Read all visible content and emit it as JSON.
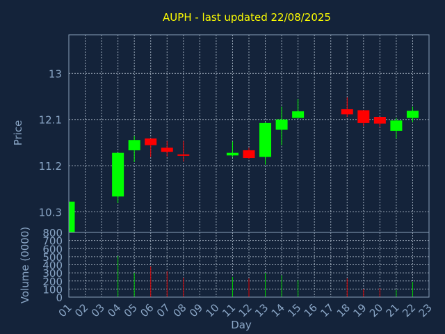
{
  "chart_data": {
    "type": "candlestick",
    "title": "AUPH - last updated 22/08/2025",
    "ylabel": "Price",
    "volume_label": "Volume (0000)",
    "xlabel": "Day",
    "ylim": [
      9.9,
      13.75
    ],
    "volume_ylim": [
      0,
      800
    ],
    "price_ticks": [
      "13",
      "12.1",
      "11.2",
      "10.3"
    ],
    "volume_ticks": [
      "800",
      "700",
      "600",
      "500",
      "400",
      "300",
      "200",
      "100",
      "0"
    ],
    "days": [
      "01",
      "02",
      "03",
      "04",
      "05",
      "06",
      "07",
      "08",
      "09",
      "10",
      "11",
      "12",
      "13",
      "14",
      "15",
      "16",
      "17",
      "18",
      "19",
      "20",
      "21",
      "22",
      "23"
    ],
    "candles": [
      {
        "day": "01",
        "open": 9.5,
        "high": 10.5,
        "low": 9.5,
        "close": 10.5
      },
      {
        "day": "04",
        "open": 10.6,
        "high": 11.45,
        "low": 10.47,
        "close": 11.45
      },
      {
        "day": "05",
        "open": 11.5,
        "high": 11.78,
        "low": 11.27,
        "close": 11.7
      },
      {
        "day": "06",
        "open": 11.73,
        "high": 11.73,
        "low": 11.37,
        "close": 11.6
      },
      {
        "day": "07",
        "open": 11.55,
        "high": 11.68,
        "low": 11.38,
        "close": 11.47
      },
      {
        "day": "08",
        "open": 11.42,
        "high": 11.68,
        "low": 11.28,
        "close": 11.4
      },
      {
        "day": "11",
        "open": 11.4,
        "high": 11.67,
        "low": 11.37,
        "close": 11.45
      },
      {
        "day": "12",
        "open": 11.5,
        "high": 11.55,
        "low": 11.33,
        "close": 11.35
      },
      {
        "day": "13",
        "open": 11.37,
        "high": 12.05,
        "low": 11.22,
        "close": 12.03
      },
      {
        "day": "14",
        "open": 11.9,
        "high": 12.35,
        "low": 11.6,
        "close": 12.1
      },
      {
        "day": "15",
        "open": 12.13,
        "high": 12.5,
        "low": 12.13,
        "close": 12.26
      },
      {
        "day": "18",
        "open": 12.3,
        "high": 12.53,
        "low": 12.15,
        "close": 12.2
      },
      {
        "day": "19",
        "open": 12.28,
        "high": 12.28,
        "low": 11.97,
        "close": 12.03
      },
      {
        "day": "20",
        "open": 12.15,
        "high": 12.15,
        "low": 11.95,
        "close": 12.02
      },
      {
        "day": "21",
        "open": 11.88,
        "high": 12.13,
        "low": 11.73,
        "close": 12.08
      },
      {
        "day": "22",
        "open": 12.13,
        "high": 12.35,
        "low": 12.05,
        "close": 12.27
      }
    ],
    "volume": [
      {
        "day": "04",
        "value": 510,
        "direction": "up"
      },
      {
        "day": "05",
        "value": 300,
        "direction": "up"
      },
      {
        "day": "06",
        "value": 380,
        "direction": "down"
      },
      {
        "day": "07",
        "value": 320,
        "direction": "down"
      },
      {
        "day": "08",
        "value": 240,
        "direction": "down"
      },
      {
        "day": "11",
        "value": 250,
        "direction": "up"
      },
      {
        "day": "12",
        "value": 230,
        "direction": "down"
      },
      {
        "day": "13",
        "value": 300,
        "direction": "up"
      },
      {
        "day": "14",
        "value": 270,
        "direction": "up"
      },
      {
        "day": "15",
        "value": 210,
        "direction": "up"
      },
      {
        "day": "18",
        "value": 230,
        "direction": "down"
      },
      {
        "day": "19",
        "value": 100,
        "direction": "down"
      },
      {
        "day": "20",
        "value": 110,
        "direction": "down"
      },
      {
        "day": "21",
        "value": 90,
        "direction": "up"
      },
      {
        "day": "22",
        "value": 190,
        "direction": "up"
      }
    ],
    "grid": true,
    "colors": {
      "background": "#14233a",
      "frame": "#8aa0ba",
      "grid": "#9aa8b8",
      "title": "#ffff00",
      "axis_text": "#8aa6c6",
      "up": "#00ff00",
      "down": "#ff0000",
      "volume_up": "#00cc00",
      "volume_down": "#dd0000"
    }
  }
}
